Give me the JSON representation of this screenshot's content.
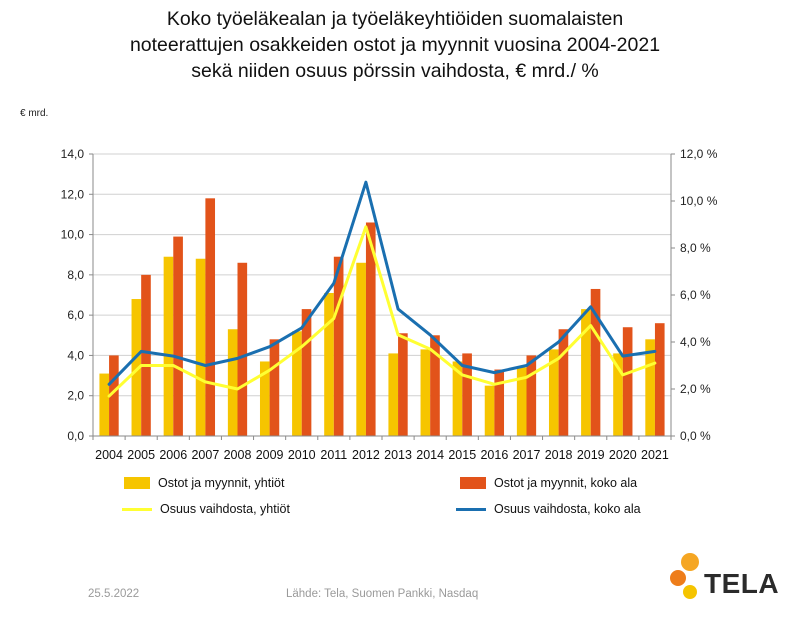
{
  "title_lines": [
    "Koko työeläkealan ja työeläkeyhtiöiden suomalaisten",
    "noteerattujen osakkeiden ostot ja myynnit vuosina 2004-2021",
    "sekä niiden osuus pörssin vaihdosta, € mrd./ %"
  ],
  "unit_label": "€ mrd.",
  "footer": {
    "date": "25.5.2022",
    "source": "Lähde: Tela, Suomen Pankki, Nasdaq"
  },
  "logo": {
    "text": "TELA",
    "colors": [
      "#f5a623",
      "#ee7d1a",
      "#f5c400"
    ]
  },
  "colors": {
    "bar_companies": "#f6c500",
    "bar_total": "#e2531a",
    "line_companies": "#ffff33",
    "line_total": "#1a6fb0",
    "axis": "#8a8a8a",
    "grid": "#d0d0d0"
  },
  "chart_data": {
    "type": "bar",
    "categories": [
      "2004",
      "2005",
      "2006",
      "2007",
      "2008",
      "2009",
      "2010",
      "2011",
      "2012",
      "2013",
      "2014",
      "2015",
      "2016",
      "2017",
      "2018",
      "2019",
      "2020",
      "2021"
    ],
    "series": [
      {
        "name": "Ostot ja myynnit, yhtiöt",
        "kind": "bar",
        "axis": "left",
        "values": [
          3.1,
          6.8,
          8.9,
          8.8,
          5.3,
          3.7,
          5.2,
          7.1,
          8.6,
          4.1,
          4.3,
          3.7,
          2.5,
          3.4,
          4.3,
          6.3,
          4.1,
          4.8
        ]
      },
      {
        "name": "Ostot ja myynnit, koko ala",
        "kind": "bar",
        "axis": "left",
        "values": [
          4.0,
          8.0,
          9.9,
          11.8,
          8.6,
          4.8,
          6.3,
          8.9,
          10.6,
          5.1,
          5.0,
          4.1,
          3.3,
          4.0,
          5.3,
          7.3,
          5.4,
          5.6
        ]
      },
      {
        "name": "Osuus vaihdosta, yhtiöt",
        "kind": "line",
        "axis": "right",
        "values": [
          1.7,
          3.0,
          3.0,
          2.3,
          2.0,
          2.8,
          3.8,
          5.0,
          8.9,
          4.3,
          3.7,
          2.6,
          2.2,
          2.5,
          3.3,
          4.7,
          2.6,
          3.1
        ]
      },
      {
        "name": "Osuus vaihdosta, koko ala",
        "kind": "line",
        "axis": "right",
        "values": [
          2.2,
          3.6,
          3.4,
          3.0,
          3.3,
          3.8,
          4.6,
          6.5,
          10.8,
          5.4,
          4.3,
          3.0,
          2.7,
          3.0,
          4.0,
          5.5,
          3.4,
          3.6
        ]
      }
    ],
    "y_left": {
      "min": 0,
      "max": 14,
      "step": 2,
      "tick_labels": [
        "0,0",
        "2,0",
        "4,0",
        "6,0",
        "8,0",
        "10,0",
        "12,0",
        "14,0"
      ]
    },
    "y_right": {
      "min": 0,
      "max": 12,
      "step": 2,
      "tick_labels": [
        "0,0 %",
        "2,0 %",
        "4,0 %",
        "6,0 %",
        "8,0 %",
        "10,0 %",
        "12,0 %"
      ]
    },
    "grid": true,
    "legend_position": "bottom"
  }
}
